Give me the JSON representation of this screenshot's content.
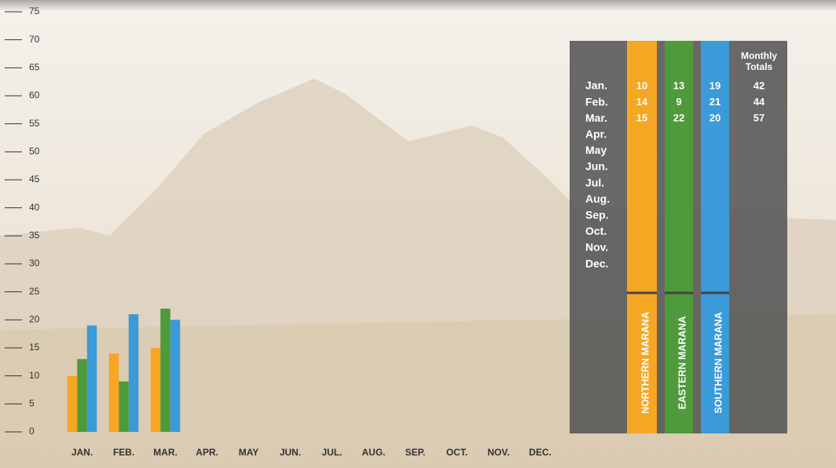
{
  "chart_data": {
    "type": "bar",
    "categories": [
      "JAN.",
      "FEB.",
      "MAR.",
      "APR.",
      "MAY",
      "JUN.",
      "JUL.",
      "AUG.",
      "SEP.",
      "OCT.",
      "NOV.",
      "DEC."
    ],
    "series": [
      {
        "name": "NORTHERN MARANA",
        "color": "#f5a623",
        "values": [
          10,
          14,
          15,
          null,
          null,
          null,
          null,
          null,
          null,
          null,
          null,
          null
        ]
      },
      {
        "name": "EASTERN MARANA",
        "color": "#4f9a3a",
        "values": [
          13,
          9,
          22,
          null,
          null,
          null,
          null,
          null,
          null,
          null,
          null,
          null
        ]
      },
      {
        "name": "SOUTHERN MARANA",
        "color": "#3b9ad8",
        "values": [
          19,
          21,
          20,
          null,
          null,
          null,
          null,
          null,
          null,
          null,
          null,
          null
        ]
      }
    ],
    "ylim": [
      0,
      75
    ],
    "yticks": [
      0,
      5,
      10,
      15,
      20,
      25,
      30,
      35,
      40,
      45,
      50,
      55,
      60,
      65,
      70,
      75
    ]
  },
  "table": {
    "months": [
      "Jan.",
      "Feb.",
      "Mar.",
      "Apr.",
      "May",
      "Jun.",
      "Jul.",
      "Aug.",
      "Sep.",
      "Oct.",
      "Nov.",
      "Dec."
    ],
    "totals_title": "Monthly Totals",
    "totals": [
      42,
      44,
      57
    ]
  }
}
